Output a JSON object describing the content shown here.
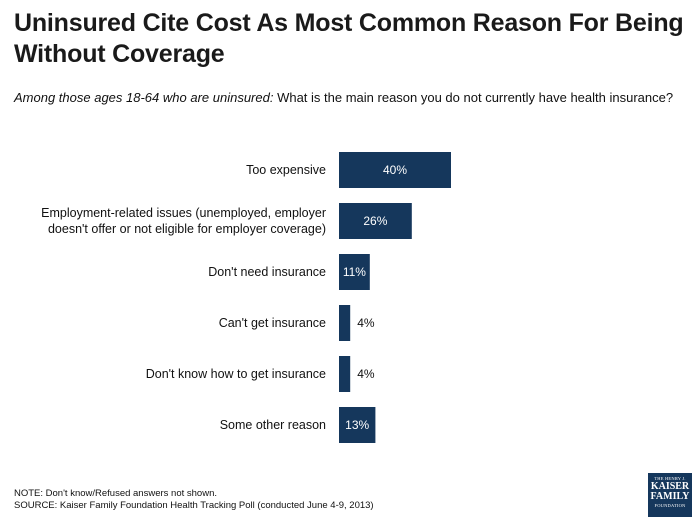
{
  "title": "Uninsured Cite Cost As Most Common Reason For Being Without Coverage",
  "subtitle_qualifier": "Among those ages 18-64 who are uninsured:",
  "subtitle_question": "What is the main reason you do not currently have health insurance?",
  "chart_data": {
    "type": "bar",
    "orientation": "horizontal",
    "categories": [
      [
        "Too expensive"
      ],
      [
        "Employment-related issues (unemployed, employer",
        "doesn't offer or not eligible for employer coverage)"
      ],
      [
        "Don't need insurance"
      ],
      [
        "Can't get insurance"
      ],
      [
        "Don't know how to get insurance"
      ],
      [
        "Some other reason"
      ]
    ],
    "values": [
      40,
      26,
      11,
      4,
      4,
      13
    ],
    "value_labels": [
      "40%",
      "26%",
      "11%",
      "4%",
      "4%",
      "13%"
    ],
    "xlim": [
      0,
      40
    ],
    "bar_color": "#15375c"
  },
  "note": "NOTE: Don't know/Refused answers not shown.",
  "source": "SOURCE: Kaiser Family Foundation Health Tracking Poll (conducted June 4-9, 2013)",
  "logo": {
    "line1": "THE HENRY J.",
    "line2": "KAISER",
    "line3": "FAMILY",
    "line4": "FOUNDATION"
  }
}
